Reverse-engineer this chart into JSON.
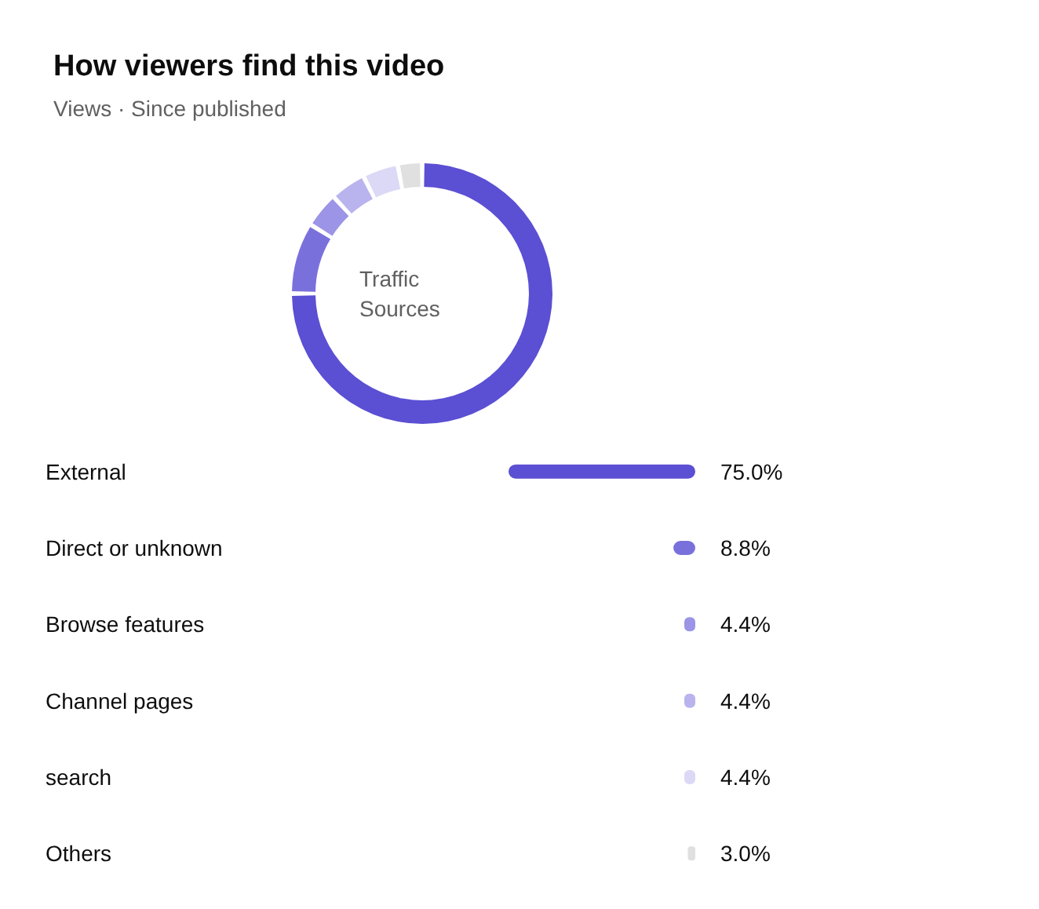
{
  "chart_data": [
    {
      "type": "donut",
      "title": "How viewers find this video",
      "subtitle": "Views · Since published",
      "annotations": [
        "Traffic\nSources"
      ],
      "categories": [
        null,
        null,
        null,
        null,
        null,
        null
      ],
      "values": [
        75.0,
        8.8,
        4.4,
        4.4,
        4.4,
        3.0
      ],
      "colors": [
        "#5b4fd3",
        "#7a70dc",
        "#9c94e6",
        "#b9b3ee",
        "#dcd9f6",
        "#e0e0e0"
      ]
    },
    {
      "type": "bar",
      "orientation": "horizontal",
      "categories": [
        "External",
        "Direct or unknown",
        "Browse features",
        "Channel pages",
        "search",
        "Others"
      ],
      "values": [
        75.0,
        8.8,
        4.4,
        4.4,
        4.4,
        3.0
      ],
      "value_labels": [
        "75.0%",
        "8.8%",
        "4.4%",
        "4.4%",
        "4.4%",
        "3.0%"
      ],
      "colors": [
        "#5b4fd3",
        "#7a70dc",
        "#9c94e6",
        "#b9b3ee",
        "#dcd9f6",
        "#e0e0e0"
      ]
    }
  ]
}
